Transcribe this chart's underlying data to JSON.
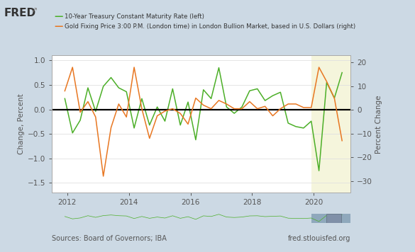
{
  "bg_color": "#ccd9e4",
  "plot_bg_color": "#ffffff",
  "highlight_bg_color": "#f5f5dc",
  "legend_line1": "10-Year Treasury Constant Maturity Rate (left)",
  "legend_line2": "Gold Fixing Price 3:00 P.M. (London time) in London Bullion Market, based in U.S. Dollars (right)",
  "green_color": "#4caf28",
  "orange_color": "#e87722",
  "ylabel_left": "Change, Percent",
  "ylabel_right": "Percent Change",
  "source_text": "Sources: Board of Governors; IBA",
  "fred_url": "fred.stlouisfed.org",
  "ylim_left": [
    -1.7,
    1.1
  ],
  "ylim_right": [
    -35,
    23
  ],
  "yticks_left": [
    -1.5,
    -1.0,
    -0.5,
    0.0,
    0.5,
    1.0
  ],
  "yticks_right": [
    -30,
    -20,
    -10,
    0,
    10,
    20
  ],
  "highlight_start": 2019.92,
  "highlight_end": 2021.2,
  "xlim": [
    2011.5,
    2021.2
  ],
  "xtick_positions": [
    2012,
    2014,
    2016,
    2018,
    2020
  ],
  "x_numeric": [
    2011.92,
    2012.17,
    2012.42,
    2012.67,
    2012.92,
    2013.17,
    2013.42,
    2013.67,
    2013.92,
    2014.17,
    2014.42,
    2014.67,
    2014.92,
    2015.17,
    2015.42,
    2015.67,
    2015.92,
    2016.17,
    2016.42,
    2016.67,
    2016.92,
    2017.17,
    2017.42,
    2017.67,
    2017.92,
    2018.17,
    2018.42,
    2018.67,
    2018.92,
    2019.17,
    2019.42,
    2019.67,
    2019.92,
    2020.17,
    2020.42,
    2020.67,
    2020.92
  ],
  "green_values": [
    0.22,
    -0.48,
    -0.22,
    0.44,
    -0.04,
    0.47,
    0.65,
    0.44,
    0.36,
    -0.38,
    0.22,
    -0.32,
    0.05,
    -0.24,
    0.42,
    -0.32,
    0.15,
    -0.62,
    0.4,
    0.22,
    0.85,
    0.05,
    -0.08,
    0.05,
    0.38,
    0.42,
    0.18,
    0.28,
    0.35,
    -0.28,
    -0.35,
    -0.38,
    -0.24,
    -1.25,
    0.55,
    0.23,
    0.75
  ],
  "orange_values": [
    8.0,
    18.0,
    -1.0,
    3.5,
    -3.0,
    -28.0,
    -7.5,
    2.5,
    -3.0,
    18.0,
    0.5,
    -12.0,
    -2.5,
    -0.5,
    0.5,
    -1.5,
    -6.0,
    5.0,
    2.0,
    0.5,
    4.0,
    2.5,
    0.5,
    0.5,
    3.5,
    0.5,
    1.5,
    -2.5,
    0.5,
    2.5,
    2.5,
    1.0,
    1.0,
    18.0,
    12.0,
    5.0,
    -13.0
  ]
}
